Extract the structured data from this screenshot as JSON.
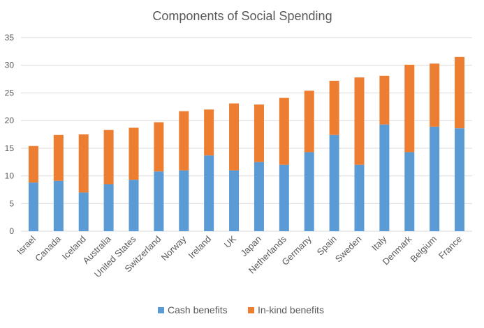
{
  "chart_data": {
    "type": "bar",
    "stacked": true,
    "title": "Components of Social Spending",
    "xlabel": "",
    "ylabel": "",
    "ylim": [
      0,
      35
    ],
    "yticks": [
      0,
      5,
      10,
      15,
      20,
      25,
      30,
      35
    ],
    "grid": true,
    "legend_position": "bottom",
    "categories": [
      "Israel",
      "Canada",
      "Iceland",
      "Australia",
      "United States",
      "Switzerland",
      "Norway",
      "Ireland",
      "UK",
      "Japan",
      "Netherlands",
      "Germany",
      "Spain",
      "Sweden",
      "Italy",
      "Denmark",
      "Belgium",
      "France"
    ],
    "series": [
      {
        "name": "Cash benefits",
        "color": "#5B9BD5",
        "values": [
          8.8,
          9.1,
          7.0,
          8.5,
          9.3,
          10.8,
          11.0,
          13.7,
          11.0,
          12.5,
          12.0,
          14.3,
          17.4,
          12.0,
          19.3,
          14.3,
          18.9,
          18.6
        ]
      },
      {
        "name": "In-kind benefits",
        "color": "#ED7D31",
        "values": [
          6.6,
          8.3,
          10.5,
          9.8,
          9.4,
          8.9,
          10.7,
          8.3,
          12.1,
          10.4,
          12.1,
          11.1,
          9.8,
          15.8,
          8.8,
          15.8,
          11.4,
          12.9
        ]
      }
    ]
  }
}
